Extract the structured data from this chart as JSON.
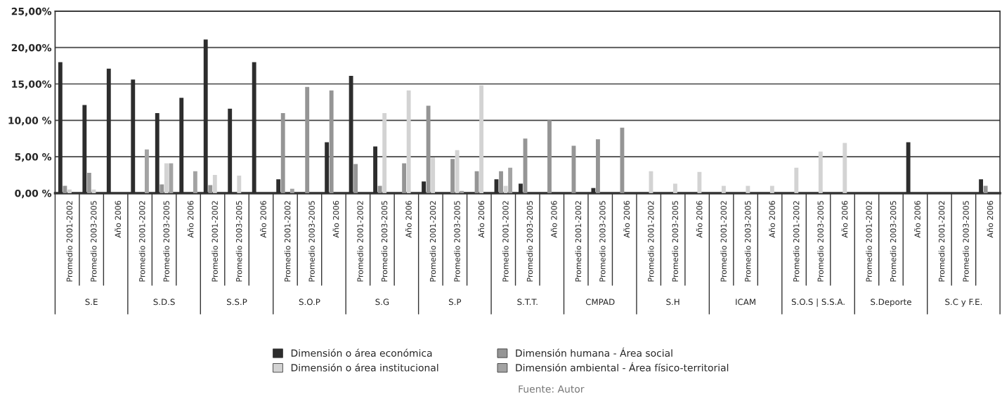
{
  "chart_data": {
    "type": "bar",
    "categories": [
      "Promedio 2001-2002",
      "Promedio 2003-2005",
      "Año 2006",
      "Promedio 2001-2002",
      "Promedio 2003-2005",
      "Año 2006",
      "Promedio 2001-2002",
      "Promedio 2003-2005",
      "Año 2006",
      "Promedio 2001-2002",
      "Promedio 2003-2005",
      "Año 2006",
      "Promedio 2001-2002",
      "Promedio 2003-2005",
      "Año 2006",
      "Promedio 2001-2002",
      "Promedio 2003-2005",
      "Año 2006",
      "Promedio 2001-2002",
      "Promedio 2003-2005",
      "Año 2006",
      "Promedio 2001-2002",
      "Promedio 2003-2005",
      "Año 2006",
      "Promedio 2001-2002",
      "Promedio 2003-2005",
      "Año 2006",
      "Promedio 2001-2002",
      "Promedio 2003-2005",
      "Año 2006",
      "Promedio 2001-2002",
      "Promedio 2003-2005",
      "Año 2006",
      "Promedio 2001-2002",
      "Promedio 2003-2005",
      "Año 2006",
      "Promedio 2001-2002",
      "Promedio 2003-2005",
      "Año 2006"
    ],
    "series": [
      {
        "name": "Dimensión o área económica",
        "color": "#2d2d2d",
        "values": [
          18.0,
          12.1,
          17.1,
          15.6,
          11.0,
          13.1,
          21.1,
          11.6,
          18.0,
          1.9,
          0,
          7.0,
          16.1,
          6.4,
          0,
          1.6,
          0,
          0,
          1.9,
          1.3,
          0,
          0,
          0.7,
          0,
          0,
          0,
          0,
          0,
          0,
          0,
          0,
          0,
          0,
          0,
          0,
          7.0,
          0,
          0,
          1.9
        ]
      },
      {
        "name": "Dimensión humana - Área social",
        "color": "#959595",
        "values": [
          1.0,
          2.8,
          0,
          0,
          1.2,
          0,
          1.1,
          0,
          0,
          11.0,
          14.6,
          14.1,
          4.0,
          1.0,
          4.1,
          12.0,
          4.7,
          3.0,
          3.0,
          7.5,
          10.0,
          6.5,
          7.4,
          9.0,
          0,
          0,
          0,
          0,
          0,
          0,
          0,
          0,
          0,
          0,
          0,
          0,
          0,
          0,
          1.0
        ]
      },
      {
        "name": "Dimensión o área institucional",
        "color": "#d3d3d3",
        "values": [
          0.5,
          0.5,
          0,
          0,
          4.1,
          0,
          2.5,
          2.4,
          0,
          0,
          0,
          0,
          0,
          11.0,
          14.1,
          4.9,
          5.9,
          14.8,
          1.0,
          0,
          0,
          0,
          0,
          0,
          3.0,
          1.3,
          2.9,
          1.0,
          1.0,
          1.0,
          3.5,
          5.7,
          6.9,
          0,
          0,
          0,
          0,
          0,
          0
        ]
      },
      {
        "name": "Dimensión ambiental - Área físico-territorial",
        "color": "#a3a3a3",
        "values": [
          0,
          0,
          0,
          6.0,
          4.1,
          3.0,
          0,
          0,
          0,
          0.6,
          0,
          0,
          0,
          0,
          0,
          0,
          0.3,
          0,
          3.5,
          0,
          0,
          0,
          0,
          0,
          0,
          0,
          0,
          0,
          0,
          0,
          0,
          0,
          0,
          0,
          0,
          0,
          0,
          0,
          0
        ]
      }
    ],
    "ylim": [
      0,
      25
    ],
    "yticks": [
      {
        "value": 0,
        "label": "0,00 %"
      },
      {
        "value": 5,
        "label": "5,00 %"
      },
      {
        "value": 10,
        "label": "10,00 %"
      },
      {
        "value": 15,
        "label": "15,00%"
      },
      {
        "value": 20,
        "label": "20,00%"
      },
      {
        "value": 25,
        "label": "25,00%"
      }
    ],
    "grid": "y",
    "legend": "bottom",
    "annotations": [
      "S.E",
      "S.D.S",
      "S.S.P",
      "S.O.P",
      "S.G",
      "S.P",
      "S.T.T.",
      "CMPAD",
      "S.H",
      "ICAM",
      "S.O.S | S.S.A.",
      "S.Deporte",
      "S.C y F.E.",
      "Fuente: Autor"
    ]
  }
}
